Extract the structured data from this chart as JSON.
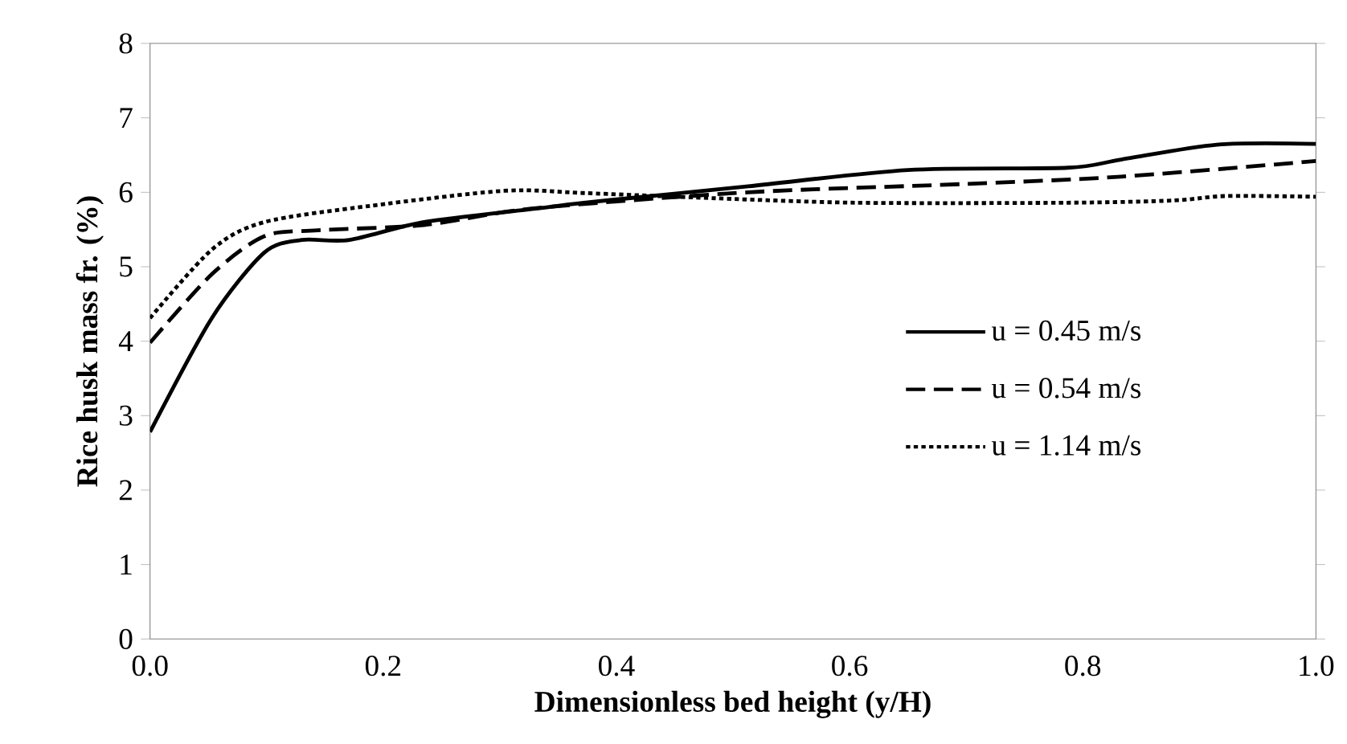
{
  "chart_data": {
    "type": "line",
    "xlabel": "Dimensionless bed height (y/H)",
    "ylabel": "Rice husk mass fr. (%)",
    "xlim": [
      0,
      1
    ],
    "ylim": [
      0,
      8
    ],
    "xticks": [
      {
        "value": 0,
        "label": "0.0"
      },
      {
        "value": 0.2,
        "label": "0.2"
      },
      {
        "value": 0.4,
        "label": "0.4"
      },
      {
        "value": 0.6,
        "label": "0.6"
      },
      {
        "value": 0.8,
        "label": "0.8"
      },
      {
        "value": 1,
        "label": "1.0"
      }
    ],
    "yticks": [
      0,
      1,
      2,
      3,
      4,
      5,
      6,
      7,
      8
    ],
    "grid": false,
    "legend": "right",
    "marker": "none",
    "series": [
      {
        "name": "u = 0.45 m/s",
        "color": "#000000",
        "line_style": "solid",
        "x": [
          0,
          0.053,
          0.098,
          0.13,
          0.171,
          0.235,
          0.331,
          0.372,
          0.513,
          0.65,
          0.787,
          0.833,
          0.915,
          1.0
        ],
        "values": [
          2.78,
          4.31,
          5.19,
          5.36,
          5.36,
          5.6,
          5.78,
          5.86,
          6.08,
          6.3,
          6.33,
          6.44,
          6.64,
          6.65
        ]
      },
      {
        "name": "u = 0.54 m/s",
        "color": "#000000",
        "line_style": "dashed",
        "x": [
          0,
          0.053,
          0.098,
          0.144,
          0.235,
          0.327,
          0.513,
          0.696,
          0.833,
          1.0
        ],
        "values": [
          3.98,
          4.9,
          5.41,
          5.49,
          5.56,
          5.78,
          6.0,
          6.11,
          6.21,
          6.42
        ]
      },
      {
        "name": "u = 1.14 m/s",
        "color": "#000000",
        "line_style": "dotted",
        "x": [
          0,
          0.053,
          0.098,
          0.19,
          0.304,
          0.372,
          0.468,
          0.605,
          0.787,
          0.878,
          0.923,
          1.0
        ],
        "values": [
          4.31,
          5.23,
          5.6,
          5.82,
          6.02,
          5.99,
          5.93,
          5.86,
          5.86,
          5.89,
          5.95,
          5.94
        ]
      }
    ]
  }
}
